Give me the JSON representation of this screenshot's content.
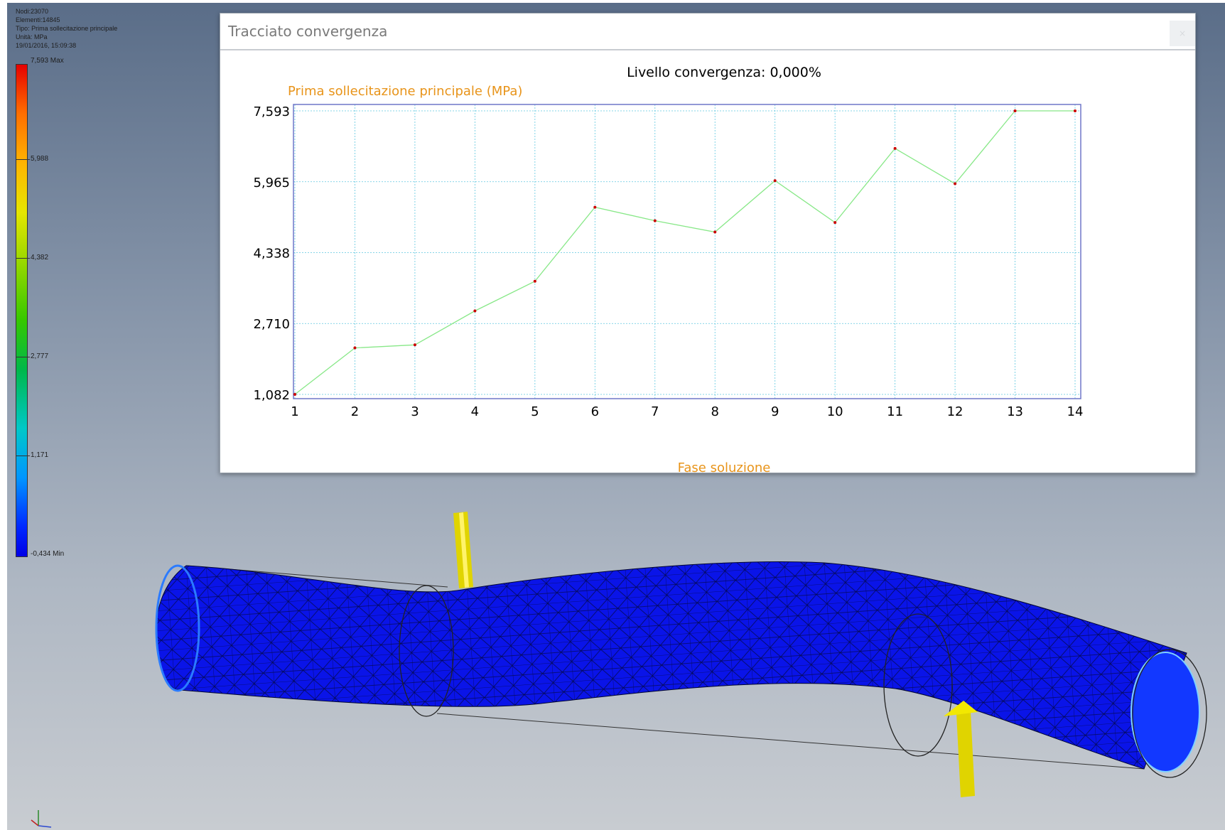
{
  "legend": {
    "info_lines": [
      "Nodi:23070",
      "Elementi:14845",
      "Tipo: Prima sollecitazione principale",
      "Unità: MPa",
      "19/01/2016, 15:09:38"
    ],
    "max_label": "7,593 Max",
    "min_label": "-0,434 Min",
    "tick_labels": [
      "5,988",
      "4,382",
      "2,777",
      "1,171"
    ]
  },
  "dialog": {
    "title": "Tracciato convergenza",
    "close_label": "×"
  },
  "chart_data": {
    "type": "line",
    "title": "Livello convergenza: 0,000%",
    "ylabel": "Prima sollecitazione principale (MPa)",
    "xlabel": "Fase soluzione",
    "x": [
      1,
      2,
      3,
      4,
      5,
      6,
      7,
      8,
      9,
      10,
      11,
      12,
      13,
      14
    ],
    "series": [
      {
        "values": [
          1.082,
          2.15,
          2.22,
          3.0,
          3.68,
          5.38,
          5.07,
          4.81,
          5.99,
          5.03,
          6.73,
          5.92,
          7.593,
          7.593
        ]
      }
    ],
    "yticks": [
      "7,593",
      "5,965",
      "4,338",
      "2,710",
      "1,082"
    ],
    "ytick_values": [
      7.593,
      5.965,
      4.338,
      2.71,
      1.082
    ],
    "ylim": [
      1.082,
      7.593
    ],
    "xlim": [
      1,
      14
    ],
    "grid": true,
    "colors": {
      "line": "#88e888",
      "marker": "#cc0000",
      "axis_label": "#e8941a",
      "grid": "#5fc8e0",
      "frame": "#6f77c9"
    }
  }
}
